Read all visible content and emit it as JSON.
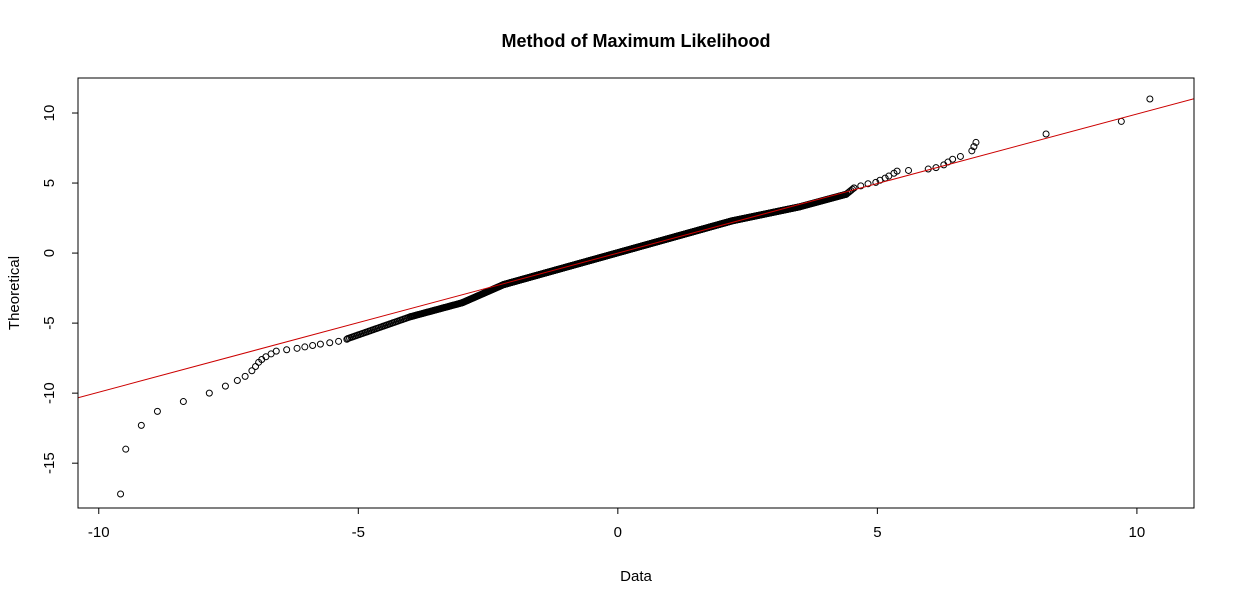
{
  "chart_data": {
    "type": "scatter",
    "title": "Method of Maximum Likelihood",
    "xlabel": "Data",
    "ylabel": "Theoretical",
    "xlim": [
      -10.4,
      11.1
    ],
    "ylim": [
      -18.2,
      12.5
    ],
    "x_ticks": [
      "-10",
      "-5",
      "0",
      "5",
      "10"
    ],
    "y_ticks": [
      "-15",
      "-10",
      "-5",
      "0",
      "5",
      "10"
    ],
    "grid": false,
    "colors": {
      "points": "#000000",
      "line": "#cc0000",
      "frame": "#000000"
    },
    "reference_line": {
      "intercept": 0.0,
      "slope": 0.993
    },
    "tail_points": [
      [
        -9.58,
        -17.2
      ],
      [
        -9.48,
        -14.0
      ],
      [
        -9.18,
        -12.3
      ],
      [
        -8.87,
        -11.3
      ],
      [
        -8.37,
        -10.6
      ],
      [
        -7.87,
        -10.0
      ],
      [
        -7.56,
        -9.5
      ],
      [
        -7.33,
        -9.1
      ],
      [
        -7.18,
        -8.8
      ],
      [
        -7.05,
        -8.4
      ],
      [
        -6.98,
        -8.1
      ],
      [
        -6.92,
        -7.8
      ],
      [
        -6.86,
        -7.6
      ],
      [
        -6.78,
        -7.4
      ],
      [
        -6.68,
        -7.2
      ],
      [
        -6.58,
        -7.0
      ],
      [
        -6.38,
        -6.9
      ],
      [
        -6.18,
        -6.8
      ],
      [
        -6.03,
        -6.7
      ],
      [
        -5.88,
        -6.6
      ],
      [
        -5.73,
        -6.5
      ],
      [
        -5.55,
        -6.4
      ],
      [
        -5.38,
        -6.3
      ],
      [
        -5.22,
        -6.15
      ],
      [
        4.55,
        4.65
      ],
      [
        4.68,
        4.8
      ],
      [
        4.82,
        4.95
      ],
      [
        4.97,
        5.05
      ],
      [
        5.05,
        5.2
      ],
      [
        5.15,
        5.35
      ],
      [
        5.22,
        5.5
      ],
      [
        5.32,
        5.7
      ],
      [
        5.38,
        5.85
      ],
      [
        5.6,
        5.9
      ],
      [
        5.98,
        6.0
      ],
      [
        6.13,
        6.1
      ],
      [
        6.28,
        6.3
      ],
      [
        6.36,
        6.5
      ],
      [
        6.45,
        6.7
      ],
      [
        6.6,
        6.9
      ],
      [
        6.82,
        7.3
      ],
      [
        6.86,
        7.6
      ],
      [
        6.9,
        7.9
      ],
      [
        8.25,
        8.5
      ],
      [
        9.7,
        9.4
      ],
      [
        10.25,
        11.0
      ]
    ],
    "body_series": [
      {
        "x_from": -5.2,
        "x_to": -4.0,
        "y_from": -6.1,
        "y_to": -4.55,
        "n": 40
      },
      {
        "x_from": -4.0,
        "x_to": -3.0,
        "y_from": -4.55,
        "y_to": -3.55,
        "n": 60
      },
      {
        "x_from": -3.0,
        "x_to": -2.2,
        "y_from": -3.55,
        "y_to": -2.25,
        "n": 90
      },
      {
        "x_from": -2.2,
        "x_to": 2.2,
        "y_from": -2.25,
        "y_to": 2.3,
        "n": 1000
      },
      {
        "x_from": 2.2,
        "x_to": 3.5,
        "y_from": 2.3,
        "y_to": 3.3,
        "n": 150
      },
      {
        "x_from": 3.5,
        "x_to": 4.4,
        "y_from": 3.3,
        "y_to": 4.2,
        "n": 60
      },
      {
        "x_from": 4.4,
        "x_to": 4.55,
        "y_from": 4.2,
        "y_to": 4.65,
        "n": 6
      }
    ]
  }
}
